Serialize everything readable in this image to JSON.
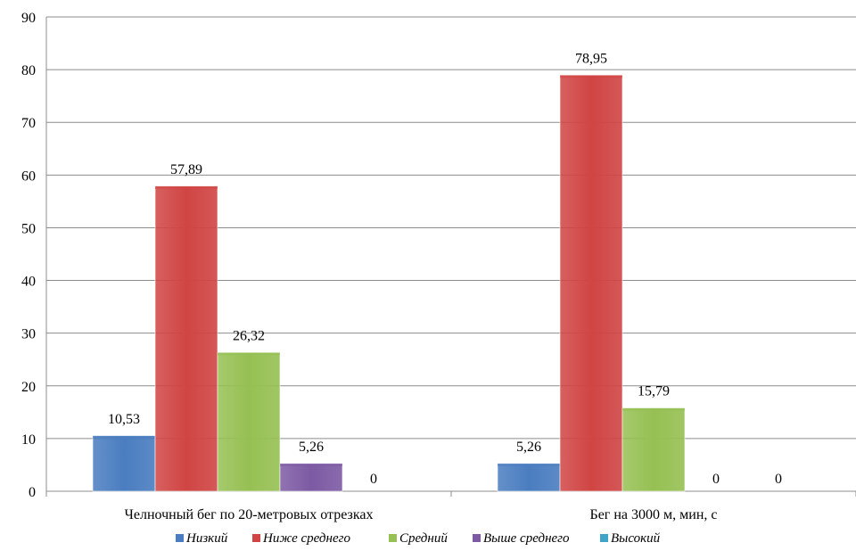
{
  "chart_data": {
    "type": "bar",
    "categories": [
      "Челночный бег по 20-метровых отрезках",
      "Бег на 3000 м, мин, с"
    ],
    "series": [
      {
        "name": "Низкий",
        "values": [
          10.53,
          5.26
        ],
        "labels": [
          "10,53",
          "5,26"
        ],
        "color": "#4a7dc0"
      },
      {
        "name": "Ниже среднего",
        "values": [
          57.89,
          78.95
        ],
        "labels": [
          "57,89",
          "78,95"
        ],
        "color": "#d04544"
      },
      {
        "name": "Средний",
        "values": [
          26.32,
          15.79
        ],
        "labels": [
          "26,32",
          "15,79"
        ],
        "color": "#96c053"
      },
      {
        "name": "Выше среднего",
        "values": [
          5.26,
          0
        ],
        "labels": [
          "5,26",
          "0"
        ],
        "color": "#7d5aa4"
      },
      {
        "name": "Высокий",
        "values": [
          0,
          0
        ],
        "labels": [
          "0",
          "0"
        ],
        "color": "#3fa5c8"
      }
    ],
    "y_ticks": [
      "0",
      "10",
      "20",
      "30",
      "40",
      "50",
      "60",
      "70",
      "80",
      "90"
    ],
    "ylim": [
      0,
      90
    ],
    "grid": true,
    "legend_position": "bottom",
    "title": "",
    "xlabel": "",
    "ylabel": ""
  }
}
